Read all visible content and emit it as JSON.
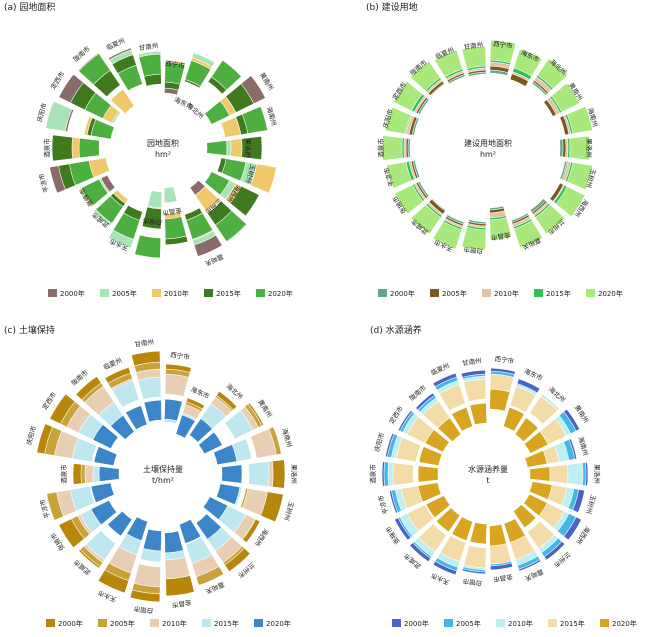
{
  "chart_data": [
    {
      "type": "radial-bar",
      "title": "(a) 园地面积",
      "center_label": "园地面积",
      "unit": "hm²",
      "colors": [
        "#8b6a6a",
        "#a9e3b8",
        "#f0c96a",
        "#3f7a1f",
        "#4caf3f"
      ],
      "series_names": [
        "2000年",
        "2005年",
        "2010年",
        "2015年",
        "2020年"
      ],
      "categories": [
        "西宁市",
        "海东市",
        "海北州",
        "黄南州",
        "海南州",
        "果洛州",
        "玉树州",
        "海西州",
        "兰州市",
        "嘉峪关",
        "金昌市",
        "白银市",
        "天水市",
        "武威市",
        "张掖市",
        "平凉市",
        "酒泉市",
        "庆阳市",
        "定西市",
        "陇南市",
        "临夏州",
        "甘南州"
      ],
      "values": [
        [
          0.35,
          0.42,
          0.48,
          0.4,
          0.46
        ],
        [
          0.0,
          0.6,
          0.55,
          0.5,
          0.52
        ],
        [
          0.0,
          0.0,
          0.65,
          0.6,
          0.66
        ],
        [
          0.74,
          0.52,
          0.42,
          0.61,
          0.34
        ],
        [
          0.64,
          0.55,
          0.43,
          0.59,
          0.66
        ],
        [
          0.36,
          0.38,
          0.48,
          0.59,
          0.24
        ],
        [
          0.42,
          0.57,
          0.75,
          0.39,
          0.44
        ],
        [
          0.35,
          0.5,
          0.61,
          0.67,
          0.34
        ],
        [
          0.28,
          0.74,
          0.37,
          0.59,
          0.73
        ],
        [
          0.74,
          0.62,
          0.57,
          0.5,
          0.56
        ],
        [
          0.15,
          0.15,
          0.46,
          0.57,
          0.51
        ],
        [
          0.25,
          0.24,
          0.4,
          0.41,
          0.7
        ],
        [
          0.57,
          0.65,
          0.55,
          0.47,
          0.56
        ],
        [
          0.46,
          0.54,
          0.42,
          0.47,
          0.51
        ],
        [
          0.42,
          0.49,
          0.53,
          0.51,
          0.51
        ],
        [
          0.75,
          0.56,
          0.38,
          0.66,
          0.55
        ],
        [
          0.67,
          0.53,
          0.54,
          0.71,
          0.44
        ],
        [
          0.77,
          0.79,
          0.4,
          0.37,
          0.33
        ],
        [
          0.76,
          0.35,
          0.37,
          0.63,
          0.47
        ],
        [
          0.75,
          0.65,
          0.31,
          0.56,
          0.74
        ],
        [
          0.65,
          0.63,
          0.53,
          0.58,
          0.47
        ],
        [
          0.53,
          0.57,
          0.49,
          0.44,
          0.54
        ]
      ]
    },
    {
      "type": "radial-bar",
      "title": "(b) 建设用地",
      "center_label": "建设用地面积",
      "unit": "hm²",
      "colors": [
        "#62a88a",
        "#7a5a1e",
        "#e6c2a0",
        "#2fbf5a",
        "#a9e87a"
      ],
      "series_names": [
        "2000年",
        "2005年",
        "2010年",
        "2015年",
        "2020年"
      ],
      "categories": [
        "西宁市",
        "海东市",
        "海北州",
        "黄南州",
        "海南州",
        "果洛州",
        "玉树州",
        "海西州",
        "兰州市",
        "嘉峪关",
        "金昌市",
        "白银市",
        "天水市",
        "武威市",
        "张掖市",
        "平凉市",
        "酒泉市",
        "庆阳市",
        "定西市",
        "陇南市",
        "临夏州",
        "甘南州"
      ],
      "values": [
        [
          0.55,
          0.58,
          0.62,
          0.66,
          0.68
        ],
        [
          0.52,
          0.52,
          0.58,
          0.6,
          0.64
        ],
        [
          0.58,
          0.6,
          0.62,
          0.66,
          0.68
        ],
        [
          0.55,
          0.52,
          0.56,
          0.6,
          0.62
        ],
        [
          0.6,
          0.58,
          0.62,
          0.64,
          0.66
        ],
        [
          0.52,
          0.55,
          0.58,
          0.6,
          0.62
        ],
        [
          0.58,
          0.6,
          0.61,
          0.64,
          0.66
        ],
        [
          0.62,
          0.6,
          0.64,
          0.65,
          0.68
        ],
        [
          0.55,
          0.58,
          0.6,
          0.62,
          0.64
        ],
        [
          0.56,
          0.58,
          0.6,
          0.63,
          0.65
        ],
        [
          0.4,
          0.42,
          0.45,
          0.5,
          0.52
        ],
        [
          0.54,
          0.56,
          0.58,
          0.6,
          0.62
        ],
        [
          0.58,
          0.6,
          0.62,
          0.64,
          0.66
        ],
        [
          0.55,
          0.56,
          0.6,
          0.62,
          0.64
        ],
        [
          0.56,
          0.58,
          0.6,
          0.62,
          0.64
        ],
        [
          0.54,
          0.56,
          0.58,
          0.6,
          0.63
        ],
        [
          0.58,
          0.6,
          0.62,
          0.64,
          0.66
        ],
        [
          0.55,
          0.57,
          0.6,
          0.63,
          0.64
        ],
        [
          0.56,
          0.58,
          0.6,
          0.62,
          0.65
        ],
        [
          0.57,
          0.58,
          0.61,
          0.63,
          0.65
        ],
        [
          0.55,
          0.57,
          0.59,
          0.61,
          0.63
        ],
        [
          0.54,
          0.56,
          0.58,
          0.6,
          0.62
        ]
      ]
    },
    {
      "type": "radial-bar",
      "title": "(c) 土壤保持",
      "center_label": "土壤保持量",
      "unit": "t/hm²",
      "colors": [
        "#b8860b",
        "#c9a33a",
        "#e8cfb3",
        "#bfe7ef",
        "#3a86c8"
      ],
      "series_names": [
        "2000年",
        "2005年",
        "2010年",
        "2015年",
        "2020年"
      ],
      "categories": [
        "西宁市",
        "海东市",
        "海北州",
        "黄南州",
        "海南州",
        "果洛州",
        "玉树州",
        "海西州",
        "兰州市",
        "嘉峪关",
        "金昌市",
        "白银市",
        "天水市",
        "武威市",
        "张掖市",
        "平凉市",
        "酒泉市",
        "庆阳市",
        "定西市",
        "陇南市",
        "临夏州",
        "甘南州"
      ],
      "values": [
        [
          0.7,
          0.65,
          0.6,
          0.32,
          0.35
        ],
        [
          0.4,
          0.36,
          0.33,
          0.24,
          0.22
        ],
        [
          0.6,
          0.55,
          0.53,
          0.45,
          0.27
        ],
        [
          0.72,
          0.7,
          0.66,
          0.6,
          0.26
        ],
        [
          0.8,
          0.8,
          0.75,
          0.5,
          0.35
        ],
        [
          0.82,
          0.7,
          0.7,
          0.66,
          0.39
        ],
        [
          0.82,
          0.64,
          0.66,
          0.4,
          0.38
        ],
        [
          0.68,
          0.62,
          0.63,
          0.52,
          0.32
        ],
        [
          0.78,
          0.7,
          0.67,
          0.53,
          0.39
        ],
        [
          0.76,
          0.77,
          0.68,
          0.54,
          0.33
        ],
        [
          0.82,
          0.56,
          0.65,
          0.46,
          0.39
        ],
        [
          0.88,
          0.8,
          0.73,
          0.48,
          0.37
        ],
        [
          0.85,
          0.72,
          0.64,
          0.45,
          0.3
        ],
        [
          0.74,
          0.72,
          0.67,
          0.64,
          0.35
        ],
        [
          0.76,
          0.62,
          0.55,
          0.52,
          0.4
        ],
        [
          0.74,
          0.78,
          0.68,
          0.54,
          0.33
        ],
        [
          0.5,
          0.42,
          0.38,
          0.3,
          0.24
        ],
        [
          0.88,
          0.8,
          0.7,
          0.52,
          0.3
        ],
        [
          0.86,
          0.74,
          0.67,
          0.54,
          0.38
        ],
        [
          0.78,
          0.7,
          0.66,
          0.47,
          0.31
        ],
        [
          0.72,
          0.66,
          0.6,
          0.58,
          0.32
        ],
        [
          0.83,
          0.72,
          0.65,
          0.57,
          0.34
        ]
      ]
    },
    {
      "type": "radial-bar",
      "title": "(d) 水源涵养",
      "center_label": "水源涵养量",
      "unit": "t",
      "colors": [
        "#4a63c9",
        "#44b8e4",
        "#bfeef3",
        "#f4dca8",
        "#d9a520"
      ],
      "series_names": [
        "2000年",
        "2005年",
        "2010年",
        "2015年",
        "2020年"
      ],
      "categories": [
        "西宁市",
        "海东市",
        "海北州",
        "黄南州",
        "海南州",
        "果洛州",
        "玉树州",
        "海西州",
        "兰州市",
        "嘉峪关",
        "金昌市",
        "白银市",
        "天水市",
        "武威市",
        "张掖市",
        "平凉市",
        "酒泉市",
        "庆阳市",
        "定西市",
        "陇南市",
        "临夏州",
        "甘南州"
      ],
      "values": [
        [
          0.66,
          0.63,
          0.58,
          0.6,
          0.45
        ],
        [
          0.6,
          0.55,
          0.54,
          0.52,
          0.3
        ],
        [
          0.56,
          0.56,
          0.55,
          0.54,
          0.28
        ],
        [
          0.62,
          0.58,
          0.52,
          0.47,
          0.27
        ],
        [
          0.5,
          0.48,
          0.42,
          0.32,
          0.2
        ],
        [
          0.6,
          0.58,
          0.55,
          0.4,
          0.22
        ],
        [
          0.58,
          0.52,
          0.47,
          0.4,
          0.25
        ],
        [
          0.64,
          0.58,
          0.5,
          0.45,
          0.26
        ],
        [
          0.64,
          0.6,
          0.55,
          0.5,
          0.25
        ],
        [
          0.62,
          0.6,
          0.56,
          0.5,
          0.32
        ],
        [
          0.56,
          0.52,
          0.5,
          0.5,
          0.32
        ],
        [
          0.6,
          0.58,
          0.56,
          0.54,
          0.3
        ],
        [
          0.66,
          0.62,
          0.58,
          0.52,
          0.3
        ],
        [
          0.66,
          0.62,
          0.6,
          0.54,
          0.3
        ],
        [
          0.64,
          0.6,
          0.58,
          0.5,
          0.29
        ],
        [
          0.6,
          0.58,
          0.54,
          0.48,
          0.31
        ],
        [
          0.66,
          0.64,
          0.6,
          0.55,
          0.3
        ],
        [
          0.64,
          0.62,
          0.58,
          0.53,
          0.3
        ],
        [
          0.6,
          0.58,
          0.55,
          0.5,
          0.3
        ],
        [
          0.58,
          0.55,
          0.52,
          0.48,
          0.28
        ],
        [
          0.66,
          0.62,
          0.58,
          0.54,
          0.3
        ],
        [
          0.64,
          0.6,
          0.58,
          0.55,
          0.31
        ]
      ]
    }
  ]
}
